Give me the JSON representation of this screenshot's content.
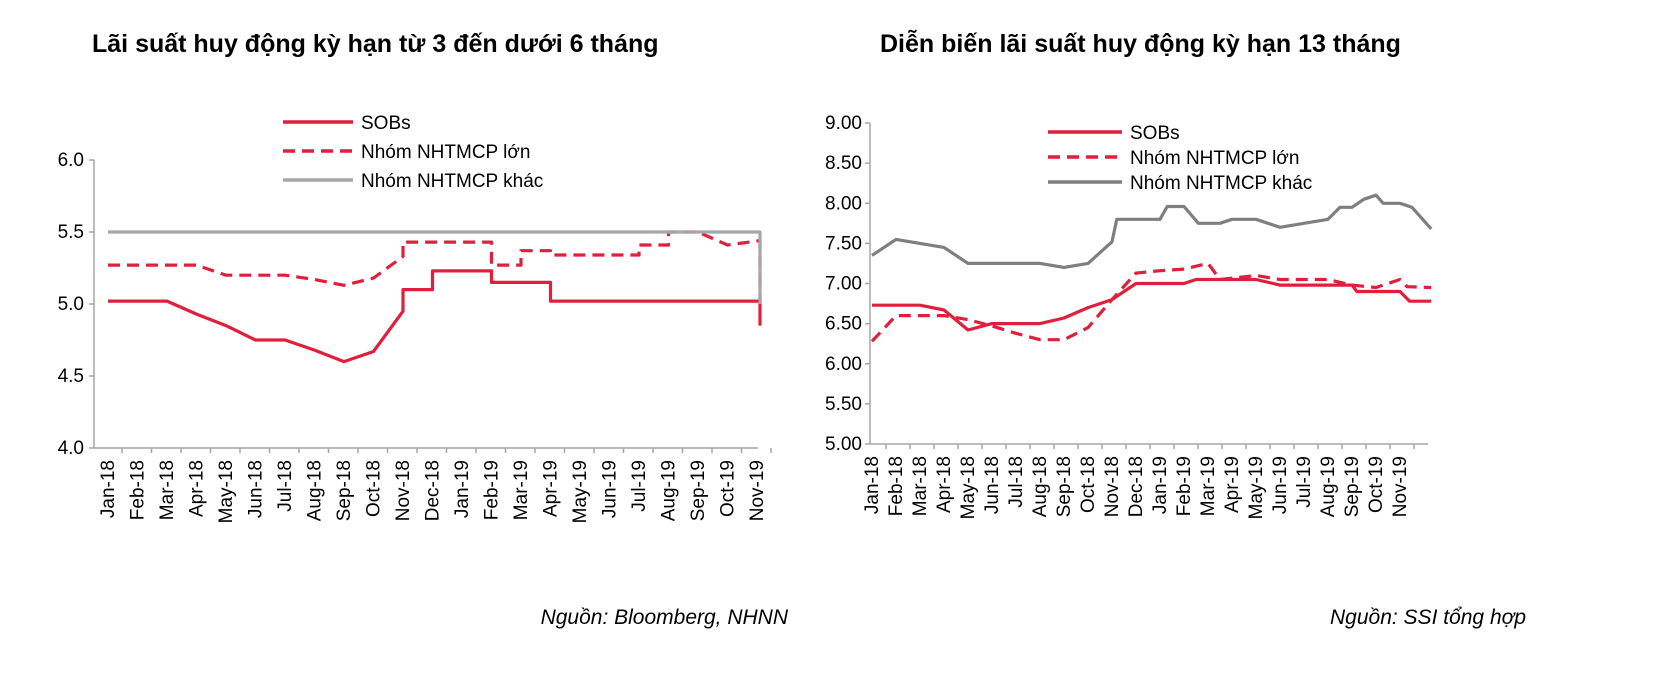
{
  "colors": {
    "sobs": "#e01f3d",
    "large": "#e01f3d",
    "other": "#a6a6a6",
    "other_dark": "#7f7f7f",
    "axis": "#a6a6a6"
  },
  "months": [
    "Jan-18",
    "Feb-18",
    "Mar-18",
    "Apr-18",
    "May-18",
    "Jun-18",
    "Jul-18",
    "Aug-18",
    "Sep-18",
    "Oct-18",
    "Nov-18",
    "Dec-18",
    "Jan-19",
    "Feb-19",
    "Mar-19",
    "Apr-19",
    "May-19",
    "Jun-19",
    "Jul-19",
    "Aug-19",
    "Sep-19",
    "Oct-19",
    "Nov-19"
  ],
  "charts": [
    {
      "title": "Lãi suất huy động kỳ hạn từ 3 đến dưới 6 tháng",
      "source": "Nguồn: Bloomberg, NHNN",
      "chart_data": {
        "type": "line",
        "x_tick_labels": [
          "Jan-18",
          "Feb-18",
          "Mar-18",
          "Apr-18",
          "May-18",
          "Jun-18",
          "Jul-18",
          "Aug-18",
          "Sep-18",
          "Oct-18",
          "Nov-18",
          "Dec-18",
          "Jan-19",
          "Feb-19",
          "Mar-19",
          "Apr-19",
          "May-19",
          "Jun-19",
          "Jul-19",
          "Aug-19",
          "Sep-19",
          "Oct-19",
          "Nov-19"
        ],
        "ylim": [
          4.0,
          6.0
        ],
        "y_ticks": [
          "4.0",
          "4.5",
          "5.0",
          "5.5",
          "6.0"
        ],
        "y_tick_values": [
          4.0,
          4.5,
          5.0,
          5.5,
          6.0
        ],
        "legend_position": "top",
        "series": [
          {
            "name": "SOBs",
            "style": "solid",
            "color": "sobs",
            "points": [
              [
                0,
                5.02
              ],
              [
                2,
                5.02
              ],
              [
                3,
                4.93
              ],
              [
                4,
                4.85
              ],
              [
                5,
                4.75
              ],
              [
                6,
                4.75
              ],
              [
                7,
                4.68
              ],
              [
                8,
                4.6
              ],
              [
                9,
                4.67
              ],
              [
                10,
                4.95
              ],
              [
                10,
                5.1
              ],
              [
                11,
                5.1
              ],
              [
                11,
                5.23
              ],
              [
                13,
                5.23
              ],
              [
                13,
                5.15
              ],
              [
                15,
                5.15
              ],
              [
                15,
                5.02
              ],
              [
                22.1,
                5.02
              ],
              [
                22.1,
                4.85
              ]
            ]
          },
          {
            "name": "Nhóm NHTMCP lớn",
            "style": "dashed",
            "color": "large",
            "points": [
              [
                0,
                5.27
              ],
              [
                3,
                5.27
              ],
              [
                4,
                5.2
              ],
              [
                6,
                5.2
              ],
              [
                7,
                5.17
              ],
              [
                8,
                5.13
              ],
              [
                9,
                5.18
              ],
              [
                10,
                5.33
              ],
              [
                10,
                5.43
              ],
              [
                13,
                5.43
              ],
              [
                13,
                5.27
              ],
              [
                14,
                5.27
              ],
              [
                14,
                5.37
              ],
              [
                15,
                5.37
              ],
              [
                15,
                5.34
              ],
              [
                18,
                5.34
              ],
              [
                18,
                5.41
              ],
              [
                19,
                5.41
              ],
              [
                19,
                5.5
              ],
              [
                20,
                5.5
              ],
              [
                21,
                5.41
              ],
              [
                22.1,
                5.44
              ],
              [
                22.1,
                5.0
              ]
            ]
          },
          {
            "name": "Nhóm NHTMCP khác",
            "style": "solid",
            "color": "other",
            "points": [
              [
                0,
                5.5
              ],
              [
                22.1,
                5.5
              ],
              [
                22.1,
                5.0
              ]
            ]
          }
        ]
      }
    },
    {
      "title": "Diễn biến lãi suất huy động kỳ hạn 13 tháng",
      "source": "Nguồn: SSI tổng hợp",
      "chart_data": {
        "type": "line",
        "x_tick_labels": [
          "Jan-18",
          "Feb-18",
          "Mar-18",
          "Apr-18",
          "May-18",
          "Jun-18",
          "Jul-18",
          "Aug-18",
          "Sep-18",
          "Oct-18",
          "Nov-18",
          "Dec-18",
          "Jan-19",
          "Feb-19",
          "Mar-19",
          "Apr-19",
          "May-19",
          "Jun-19",
          "Jul-19",
          "Aug-19",
          "Sep-19",
          "Oct-19",
          "Nov-19"
        ],
        "ylim": [
          5.0,
          9.0
        ],
        "y_ticks": [
          "5.00",
          "5.50",
          "6.00",
          "6.50",
          "7.00",
          "7.50",
          "8.00",
          "8.50",
          "9.00"
        ],
        "y_tick_values": [
          5.0,
          5.5,
          6.0,
          6.5,
          7.0,
          7.5,
          8.0,
          8.5,
          9.0
        ],
        "legend_position": "top",
        "series": [
          {
            "name": "SOBs",
            "style": "solid",
            "color": "sobs",
            "points": [
              [
                0,
                6.73
              ],
              [
                2,
                6.73
              ],
              [
                3,
                6.67
              ],
              [
                4,
                6.42
              ],
              [
                5,
                6.5
              ],
              [
                7,
                6.5
              ],
              [
                8,
                6.57
              ],
              [
                9,
                6.7
              ],
              [
                10,
                6.8
              ],
              [
                11,
                7.0
              ],
              [
                13,
                7.0
              ],
              [
                13.5,
                7.05
              ],
              [
                15,
                7.05
              ],
              [
                16,
                7.05
              ],
              [
                17,
                6.98
              ],
              [
                20,
                6.98
              ],
              [
                20.2,
                6.9
              ],
              [
                22,
                6.9
              ],
              [
                22.4,
                6.78
              ],
              [
                23.3,
                6.78
              ]
            ]
          },
          {
            "name": "Nhóm NHTMCP lớn",
            "style": "dashed",
            "color": "large",
            "points": [
              [
                0,
                6.28
              ],
              [
                1,
                6.6
              ],
              [
                3,
                6.6
              ],
              [
                4,
                6.55
              ],
              [
                5,
                6.47
              ],
              [
                6,
                6.38
              ],
              [
                7,
                6.3
              ],
              [
                8,
                6.3
              ],
              [
                9,
                6.45
              ],
              [
                10,
                6.8
              ],
              [
                11,
                7.13
              ],
              [
                12,
                7.16
              ],
              [
                13,
                7.18
              ],
              [
                14,
                7.25
              ],
              [
                14.5,
                7.05
              ],
              [
                16,
                7.1
              ],
              [
                17,
                7.05
              ],
              [
                19,
                7.05
              ],
              [
                20,
                6.98
              ],
              [
                21,
                6.95
              ],
              [
                22,
                7.05
              ],
              [
                22.3,
                6.96
              ],
              [
                23.3,
                6.95
              ]
            ]
          },
          {
            "name": "Nhóm NHTMCP khác",
            "style": "solid",
            "color": "other_dark",
            "points": [
              [
                0,
                7.35
              ],
              [
                1,
                7.55
              ],
              [
                2,
                7.5
              ],
              [
                3,
                7.45
              ],
              [
                4,
                7.25
              ],
              [
                7,
                7.25
              ],
              [
                8,
                7.2
              ],
              [
                9,
                7.25
              ],
              [
                10,
                7.52
              ],
              [
                10.2,
                7.8
              ],
              [
                12,
                7.8
              ],
              [
                12.3,
                7.96
              ],
              [
                13,
                7.96
              ],
              [
                13.6,
                7.75
              ],
              [
                14.5,
                7.75
              ],
              [
                15,
                7.8
              ],
              [
                16,
                7.8
              ],
              [
                17,
                7.7
              ],
              [
                18,
                7.75
              ],
              [
                19,
                7.8
              ],
              [
                19.5,
                7.95
              ],
              [
                20,
                7.95
              ],
              [
                20.5,
                8.05
              ],
              [
                21,
                8.1
              ],
              [
                21.3,
                8.0
              ],
              [
                22,
                8.0
              ],
              [
                22.5,
                7.95
              ],
              [
                23.3,
                7.68
              ]
            ]
          }
        ]
      }
    }
  ]
}
